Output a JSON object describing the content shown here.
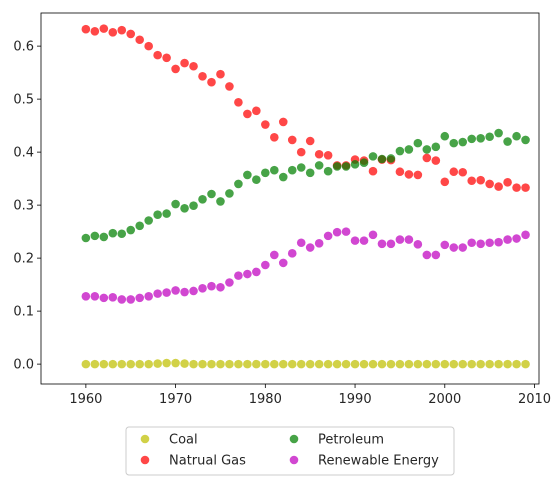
{
  "chart_data": {
    "type": "scatter",
    "title": "",
    "xlabel": "",
    "ylabel": "",
    "xlim": [
      1955,
      2010.5
    ],
    "ylim": [
      -0.0375,
      0.6625
    ],
    "xticks": [
      1960,
      1970,
      1980,
      1990,
      2000,
      2010
    ],
    "yticks": [
      0.0,
      0.1,
      0.2,
      0.3,
      0.4,
      0.5,
      0.6
    ],
    "ytick_labels": [
      "0.0",
      "0.1",
      "0.2",
      "0.3",
      "0.4",
      "0.5",
      "0.6"
    ],
    "grid": false,
    "legend": {
      "placement": "bottom-center-outside",
      "columns": 2
    },
    "x": [
      1960,
      1961,
      1962,
      1963,
      1964,
      1965,
      1966,
      1967,
      1968,
      1969,
      1970,
      1971,
      1972,
      1973,
      1974,
      1975,
      1976,
      1977,
      1978,
      1979,
      1980,
      1981,
      1982,
      1983,
      1984,
      1985,
      1986,
      1987,
      1988,
      1989,
      1990,
      1991,
      1992,
      1993,
      1994,
      1995,
      1996,
      1997,
      1998,
      1999,
      2000,
      2001,
      2002,
      2003,
      2004,
      2005,
      2006,
      2007,
      2008,
      2009
    ],
    "series": [
      {
        "name": "Coal",
        "color": "#bfbf00",
        "values": [
          0.0,
          0.0,
          0.0,
          0.0,
          0.0,
          0.0,
          0.0,
          0.0,
          0.001,
          0.002,
          0.002,
          0.001,
          0.0,
          0.0,
          0.0,
          0.0,
          0.0,
          0.0,
          0.0,
          0.0,
          0.0,
          0.0,
          0.0,
          0.0,
          0.0,
          0.0,
          0.0,
          0.0,
          0.0,
          0.0,
          0.0,
          0.0,
          0.0,
          0.0,
          0.0,
          0.0,
          0.0,
          0.0,
          0.0,
          0.0,
          0.0,
          0.0,
          0.0,
          0.0,
          0.0,
          0.0,
          0.0,
          0.0,
          0.0,
          0.0
        ]
      },
      {
        "name": "Natrual Gas",
        "color": "#ff0000",
        "values": [
          0.632,
          0.628,
          0.633,
          0.626,
          0.63,
          0.623,
          0.612,
          0.6,
          0.583,
          0.578,
          0.557,
          0.568,
          0.562,
          0.543,
          0.532,
          0.547,
          0.524,
          0.494,
          0.472,
          0.478,
          0.452,
          0.428,
          0.457,
          0.423,
          0.4,
          0.421,
          0.396,
          0.394,
          0.375,
          0.375,
          0.386,
          0.384,
          0.364,
          0.386,
          0.385,
          0.363,
          0.358,
          0.357,
          0.389,
          0.384,
          0.344,
          0.363,
          0.362,
          0.346,
          0.347,
          0.34,
          0.335,
          0.343,
          0.333,
          0.333
        ]
      },
      {
        "name": "Petroleum",
        "color": "#008000",
        "values": [
          0.238,
          0.242,
          0.24,
          0.247,
          0.246,
          0.253,
          0.261,
          0.271,
          0.282,
          0.284,
          0.302,
          0.294,
          0.299,
          0.311,
          0.321,
          0.307,
          0.322,
          0.34,
          0.357,
          0.348,
          0.361,
          0.366,
          0.353,
          0.366,
          0.371,
          0.361,
          0.375,
          0.364,
          0.373,
          0.373,
          0.377,
          0.38,
          0.392,
          0.387,
          0.388,
          0.402,
          0.405,
          0.417,
          0.405,
          0.41,
          0.43,
          0.417,
          0.419,
          0.425,
          0.426,
          0.429,
          0.436,
          0.42,
          0.43,
          0.423
        ]
      },
      {
        "name": "Renewable Energy",
        "color": "#bf00bf",
        "values": [
          0.128,
          0.128,
          0.125,
          0.126,
          0.122,
          0.122,
          0.125,
          0.128,
          0.133,
          0.135,
          0.139,
          0.136,
          0.138,
          0.143,
          0.147,
          0.145,
          0.154,
          0.167,
          0.17,
          0.174,
          0.187,
          0.206,
          0.191,
          0.209,
          0.229,
          0.22,
          0.228,
          0.242,
          0.249,
          0.25,
          0.233,
          0.233,
          0.244,
          0.227,
          0.227,
          0.235,
          0.235,
          0.226,
          0.206,
          0.206,
          0.225,
          0.22,
          0.22,
          0.229,
          0.227,
          0.229,
          0.23,
          0.235,
          0.237,
          0.244
        ]
      }
    ]
  }
}
